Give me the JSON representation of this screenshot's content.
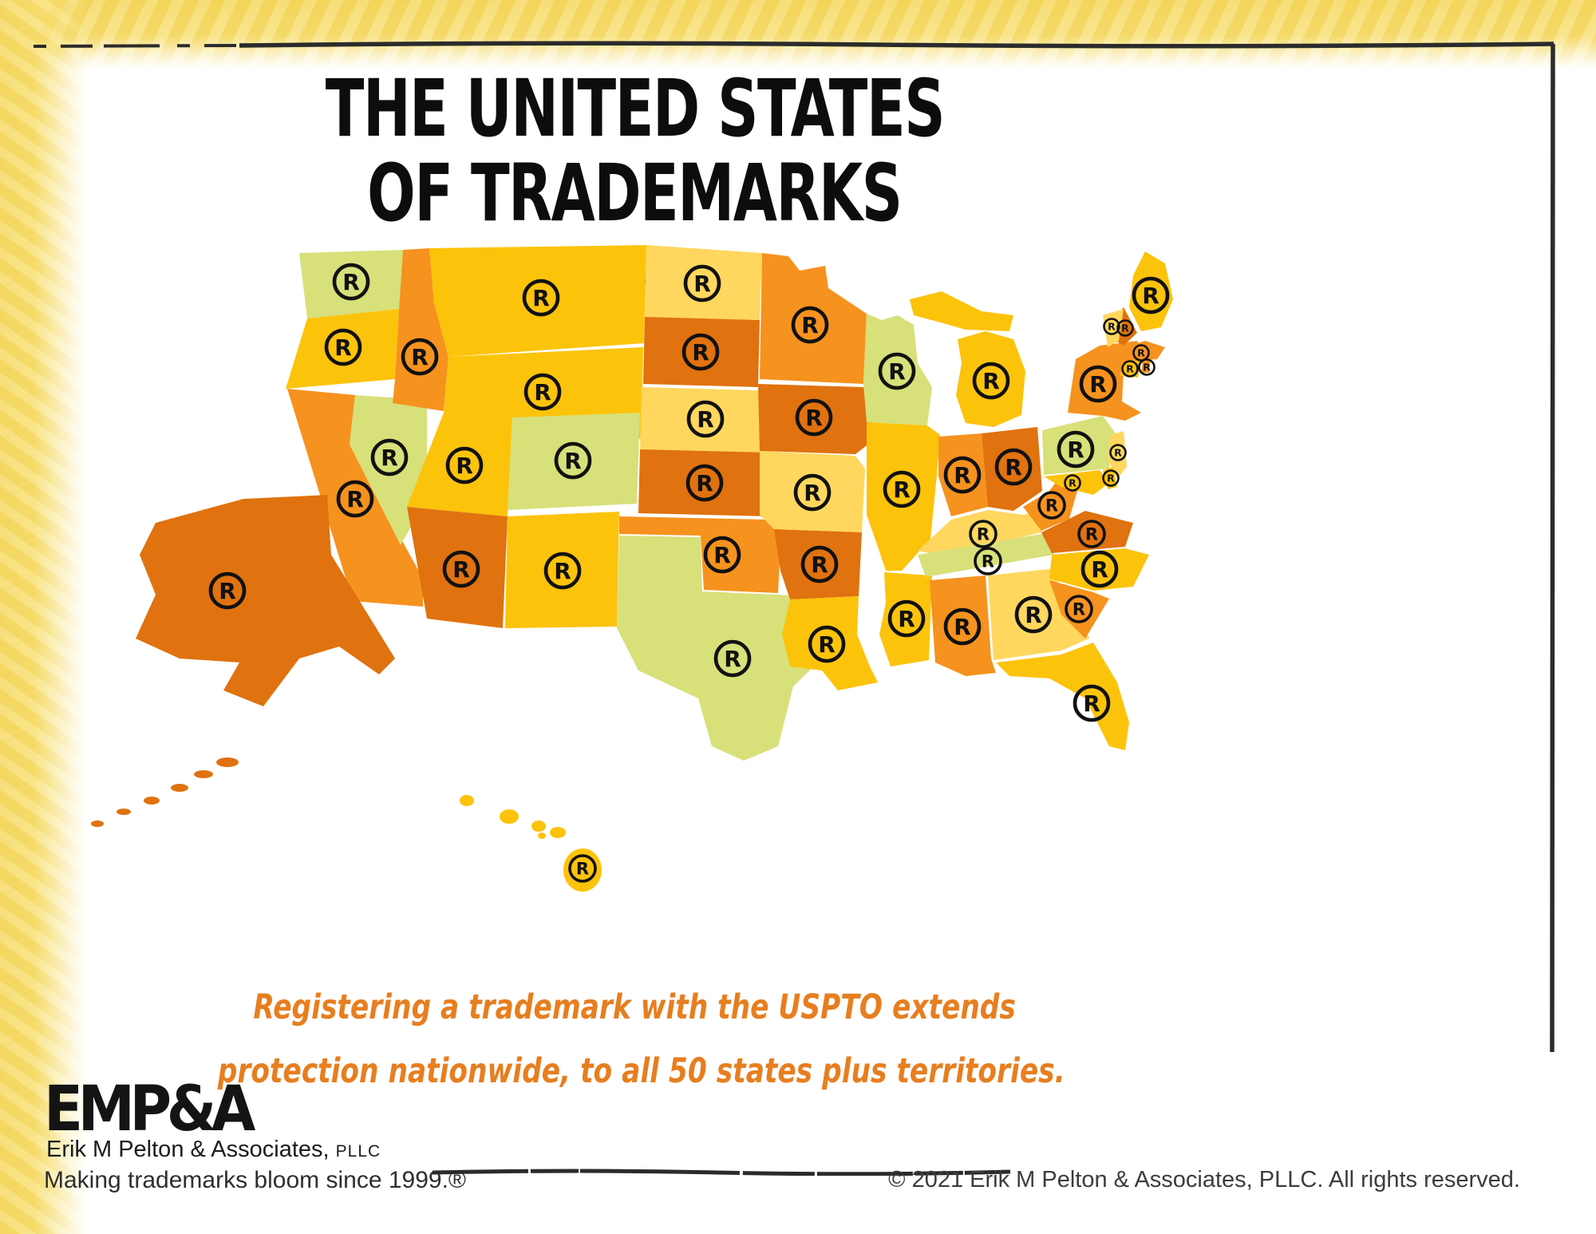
{
  "title": {
    "line1": "THE UNITED STATES",
    "line2": "OF TRADEMARKS"
  },
  "tagline": {
    "line1": "Registering a trademark with the USPTO extends",
    "line2": "protection nationwide, to all 50 states plus territories."
  },
  "footer": {
    "logo_text": "EMP&A",
    "firm_name": "Erik M Pelton & Associates,",
    "firm_suffix": "PLLC",
    "slogan": "Making trademarks bloom since 1999.®",
    "copyright": "© 2021 Erik M Pelton & Associates, PLLC. All rights reserved."
  },
  "map": {
    "registered_symbol": "R",
    "colors": {
      "green": "#D8E07A",
      "gold": "#FCC30B",
      "pale": "#FFD75E",
      "orange": "#F6921E",
      "dark": "#E0720F"
    },
    "states": [
      {
        "id": "WA",
        "name": "Washington",
        "color": "green",
        "points": [
          "295,22 425,18 420,92 305,104"
        ],
        "mark": [
          360,
          58
        ],
        "mark_size": "lg"
      },
      {
        "id": "OR",
        "name": "Oregon",
        "color": "gold",
        "points": [
          "305,104 420,92 415,180 278,192"
        ],
        "mark": [
          350,
          140
        ],
        "mark_size": "lg"
      },
      {
        "id": "CA",
        "name": "California",
        "color": "orange",
        "points": [
          "280,192 365,200 358,262 450,430 450,465 362,458"
        ],
        "mark": [
          365,
          330
        ],
        "mark_size": "lg"
      },
      {
        "id": "NV",
        "name": "Nevada",
        "color": "green",
        "points": [
          "365,200 455,206 455,330 422,388 358,262"
        ],
        "mark": [
          408,
          278
        ],
        "mark_size": "lg"
      },
      {
        "id": "ID",
        "name": "Idaho",
        "color": "orange",
        "points": [
          "425,18 458,16 464,84 482,152 476,220 412,210 415,180 420,92"
        ],
        "mark": [
          446,
          152
        ],
        "mark_size": "lg"
      },
      {
        "id": "MT",
        "name": "Montana",
        "color": "gold",
        "points": [
          "458,16 730,12 727,135 482,152 464,84"
        ],
        "mark": [
          598,
          78
        ],
        "mark_size": "lg"
      },
      {
        "id": "WY",
        "name": "Wyoming",
        "color": "gold",
        "points": [
          "482,152 726,140 724,255 476,222"
        ],
        "mark": [
          600,
          196
        ],
        "mark_size": "lg"
      },
      {
        "id": "UT",
        "name": "Utah",
        "color": "gold",
        "points": [
          "476,222 562,228 556,352 430,340"
        ],
        "mark": [
          502,
          288
        ],
        "mark_size": "lg"
      },
      {
        "id": "AZ",
        "name": "Arizona",
        "color": "dark",
        "points": [
          "430,340 556,352 550,492 455,480"
        ],
        "mark": [
          498,
          418
        ],
        "mark_size": "lg"
      },
      {
        "id": "CO",
        "name": "Colorado",
        "color": "green",
        "points": [
          "562,228 722,222 718,336 556,344"
        ],
        "mark": [
          638,
          282
        ],
        "mark_size": "lg"
      },
      {
        "id": "NM",
        "name": "New Mexico",
        "color": "gold",
        "points": [
          "556,352 696,346 693,490 553,492"
        ],
        "mark": [
          625,
          420
        ],
        "mark_size": "lg"
      },
      {
        "id": "ND",
        "name": "North Dakota",
        "color": "pale",
        "points": [
          "730,12 875,22 872,106 728,102"
        ],
        "mark": [
          800,
          60
        ],
        "mark_size": "lg"
      },
      {
        "id": "SD",
        "name": "South Dakota",
        "color": "dark",
        "points": [
          "728,102 872,106 870,190 726,186"
        ],
        "mark": [
          798,
          146
        ],
        "mark_size": "lg"
      },
      {
        "id": "NE",
        "name": "Nebraska",
        "color": "pale",
        "points": [
          "724,190 870,194 888,272 722,268"
        ],
        "mark": [
          804,
          230
        ],
        "mark_size": "lg"
      },
      {
        "id": "KS",
        "name": "Kansas",
        "color": "dark",
        "points": [
          "722,268 888,272 886,352 720,348"
        ],
        "mark": [
          803,
          310
        ],
        "mark_size": "lg"
      },
      {
        "id": "OK",
        "name": "Oklahoma",
        "color": "orange",
        "points": [
          "696,352 886,356 900,358 895,448 802,444 798,376 696,374"
        ],
        "mark": [
          825,
          400
        ],
        "mark_size": "lg"
      },
      {
        "id": "TX",
        "name": "Texas",
        "color": "green",
        "points": [
          "696,376 798,378 800,446 895,450 950,454 948,532 914,565 895,640 852,658 812,640 795,580 720,545 693,492"
        ],
        "mark": [
          838,
          530
        ],
        "mark_size": "lg"
      },
      {
        "id": "MN",
        "name": "Minnesota",
        "color": "orange",
        "points": [
          "875,22 908,26 922,44 954,38 958,66 1006,98 1002,186 872,180"
        ],
        "mark": [
          935,
          112
        ],
        "mark_size": "lg"
      },
      {
        "id": "IA",
        "name": "Iowa",
        "color": "dark",
        "points": [
          "870,186 1002,190 1016,214 1010,260 992,274 872,270"
        ],
        "mark": [
          940,
          228
        ],
        "mark_size": "lg"
      },
      {
        "id": "MO",
        "name": "Missouri",
        "color": "pale",
        "points": [
          "872,270 992,276 1004,292 1000,372 890,368 872,350"
        ],
        "mark": [
          938,
          322
        ],
        "mark_size": "lg"
      },
      {
        "id": "AR",
        "name": "Arkansas",
        "color": "dark",
        "points": [
          "890,368 1000,372 996,452 910,456 898,420"
        ],
        "mark": [
          947,
          412
        ],
        "mark_size": "lg"
      },
      {
        "id": "LA",
        "name": "Louisiana",
        "color": "gold",
        "points": [
          "910,456 996,452 994,500 1010,540 1020,560 970,570 950,545 910,540 900,500"
        ],
        "mark": [
          956,
          512
        ],
        "mark_size": "lg"
      },
      {
        "id": "WI",
        "name": "Wisconsin",
        "color": "green",
        "points": [
          "1006,98 1025,106 1045,100 1065,112 1070,160 1088,190 1082,238 1006,234 1002,186"
        ],
        "mark": [
          1044,
          170
        ],
        "mark_size": "lg"
      },
      {
        "id": "IL",
        "name": "Illinois",
        "color": "gold",
        "points": [
          "1006,234 1082,238 1098,250 1094,300 1086,380 1050,420 1030,420 1020,390 1006,350"
        ],
        "mark": [
          1050,
          318
        ],
        "mark_size": "lg"
      },
      {
        "id": "MS",
        "name": "Mississippi",
        "color": "gold",
        "points": [
          "1028,422 1088,426 1084,532 1036,540 1022,500 1030,460"
        ],
        "mark": [
          1056,
          480
        ],
        "mark_size": "lg"
      },
      {
        "id": "MI",
        "name": "Michigan",
        "color": "gold",
        "points": [
          "1060,80 1100,70 1150,95 1190,100 1185,120 1130,118 1095,108 1065,100",
          "1120,130 1155,120 1190,130 1205,170 1200,225 1165,240 1130,235 1118,200 1125,160"
        ],
        "mark": [
          1162,
          182
        ],
        "mark_size": "lg"
      },
      {
        "id": "IN",
        "name": "Indiana",
        "color": "orange",
        "points": [
          "1096,252 1150,248 1158,340 1112,352 1096,302"
        ],
        "mark": [
          1126,
          300
        ],
        "mark_size": "lg"
      },
      {
        "id": "OH",
        "name": "Ohio",
        "color": "dark",
        "points": [
          "1150,248 1220,240 1226,320 1190,345 1158,340"
        ],
        "mark": [
          1190,
          290
        ],
        "mark_size": "lg"
      },
      {
        "id": "KY",
        "name": "Kentucky",
        "color": "pale",
        "points": [
          "1070,395 1112,356 1158,344 1202,350 1236,342 1225,372 1150,390 1095,400"
        ],
        "mark": [
          1152,
          374
        ],
        "mark_size": "md"
      },
      {
        "id": "TN",
        "name": "Tennessee",
        "color": "green",
        "points": [
          "1070,400 1225,374 1250,370 1240,400 1080,428"
        ],
        "mark": [
          1158,
          408
        ],
        "mark_size": "md"
      },
      {
        "id": "AL",
        "name": "Alabama",
        "color": "orange",
        "points": [
          "1085,432 1155,426 1162,530 1168,548 1130,552 1092,535"
        ],
        "mark": [
          1126,
          490
        ],
        "mark_size": "lg"
      },
      {
        "id": "GA",
        "name": "Georgia",
        "color": "pale",
        "points": [
          "1158,426 1235,418 1270,470 1285,505 1250,520 1165,532"
        ],
        "mark": [
          1215,
          475
        ],
        "mark_size": "lg"
      },
      {
        "id": "FL",
        "name": "Florida",
        "color": "gold",
        "points": [
          "1168,535 1250,525 1290,510 1320,560 1335,610 1330,645 1310,640 1280,580 1235,555 1185,552"
        ],
        "mark": [
          1288,
          586
        ],
        "mark_size": "lg"
      },
      {
        "id": "WV",
        "name": "West Virginia",
        "color": "orange",
        "points": [
          "1202,340 1235,320 1250,300 1270,320 1260,355 1225,370"
        ],
        "mark": [
          1238,
          338
        ],
        "mark_size": "md"
      },
      {
        "id": "VA",
        "name": "Virginia",
        "color": "dark",
        "points": [
          "1225,372 1280,345 1340,360 1330,390 1238,398"
        ],
        "mark": [
          1288,
          374
        ],
        "mark_size": "md"
      },
      {
        "id": "NC",
        "name": "North Carolina",
        "color": "gold",
        "points": [
          "1238,400 1330,392 1360,400 1340,440 1290,445 1235,430"
        ],
        "mark": [
          1298,
          418
        ],
        "mark_size": "lg"
      },
      {
        "id": "SC",
        "name": "South Carolina",
        "color": "orange",
        "points": [
          "1235,432 1290,447 1310,455 1280,505 1250,475"
        ],
        "mark": [
          1272,
          468
        ],
        "mark_size": "md"
      },
      {
        "id": "PA",
        "name": "Pennsylvania",
        "color": "green",
        "points": [
          "1226,244 1302,226 1318,248 1310,292 1228,300"
        ],
        "mark": [
          1268,
          268
        ],
        "mark_size": "lg"
      },
      {
        "id": "NY",
        "name": "New York",
        "color": "orange",
        "points": [
          "1258,222 1268,155 1298,138 1345,132 1352,148 1328,170 1326,208 1350,222 1330,232 1302,226"
        ],
        "mark": [
          1296,
          186
        ],
        "mark_size": "lg"
      },
      {
        "id": "NJ",
        "name": "New Jersey",
        "color": "pale",
        "points": [
          "1312,250 1328,245 1332,290 1320,305 1308,280"
        ],
        "mark": [
          1321,
          272
        ],
        "mark_size": "sm"
      },
      {
        "id": "MD",
        "name": "Maryland",
        "color": "gold",
        "points": [
          "1228,302 1298,294 1310,310 1290,325 1250,315"
        ],
        "mark": [
          1264,
          310
        ],
        "mark_size": "sm"
      },
      {
        "id": "DE",
        "name": "Delaware",
        "color": "gold",
        "points": [
          "1302,294 1315,290 1320,315 1308,318"
        ],
        "mark": [
          1312,
          304
        ],
        "mark_size": "sm"
      },
      {
        "id": "ME",
        "name": "Maine",
        "color": "gold",
        "points": [
          "1355,20 1380,35 1390,80 1375,115 1350,120 1335,90 1340,50"
        ],
        "mark": [
          1362,
          75
        ],
        "mark_size": "lg"
      },
      {
        "id": "NH",
        "name": "New Hampshire",
        "color": "dark",
        "points": [
          "1328,90 1345,122 1328,138 1315,130 1320,98"
        ],
        "mark": [
          1330,
          116
        ],
        "mark_size": "sm"
      },
      {
        "id": "VT",
        "name": "Vermont",
        "color": "pale",
        "points": [
          "1302,100 1328,92 1322,132 1308,140"
        ],
        "mark": [
          1313,
          114
        ],
        "mark_size": "sm"
      },
      {
        "id": "MA",
        "name": "Massachusetts",
        "color": "orange",
        "points": [
          "1328,140 1355,132 1380,140 1370,155 1328,158"
        ],
        "mark": [
          1350,
          147
        ],
        "mark_size": "sm"
      },
      {
        "id": "CT",
        "name": "Connecticut",
        "color": "gold",
        "points": [
          "1326,160 1350,156 1346,178 1324,176"
        ],
        "mark": [
          1336,
          167
        ],
        "mark_size": "sm"
      },
      {
        "id": "RI",
        "name": "Rhode Island",
        "color": "orange",
        "points": [
          "1352,158 1362,156 1360,172 1350,172"
        ],
        "mark": [
          1357,
          165
        ],
        "mark_size": "sm"
      },
      {
        "id": "AK",
        "name": "Alaska",
        "color": "dark",
        "points": [
          "115,360 225,330 330,325 335,400 415,530 395,550 345,515 295,530 250,590 200,570 220,535 145,530 90,505 115,450 95,400"
        ],
        "ellipses": [
          [
            205,
            660,
            14,
            6
          ],
          [
            175,
            675,
            12,
            5
          ],
          [
            145,
            692,
            11,
            5
          ],
          [
            110,
            708,
            10,
            5
          ],
          [
            75,
            722,
            9,
            4
          ],
          [
            42,
            737,
            8,
            4
          ]
        ],
        "mark": [
          205,
          445
        ],
        "mark_size": "lg"
      },
      {
        "id": "HI",
        "name": "Hawaii",
        "color": "gold",
        "points": [],
        "ellipses": [
          [
            505,
            708,
            9,
            7
          ],
          [
            558,
            728,
            12,
            9
          ],
          [
            595,
            740,
            9,
            7
          ],
          [
            599,
            752,
            5,
            4
          ],
          [
            619,
            748,
            10,
            7
          ],
          [
            650,
            795,
            24,
            27
          ]
        ],
        "mark": [
          650,
          793
        ],
        "mark_size": "md"
      }
    ]
  }
}
